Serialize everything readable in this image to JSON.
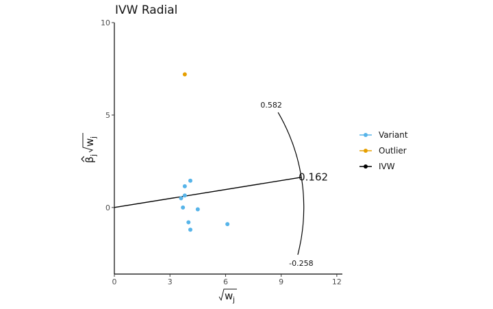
{
  "chart_data": {
    "type": "scatter",
    "title": "IVW Radial",
    "xlim": [
      0,
      12.3
    ],
    "ylim": [
      -3.6,
      10
    ],
    "x_ticks": [
      {
        "value": 0,
        "label": "0"
      },
      {
        "value": 3,
        "label": "3"
      },
      {
        "value": 6,
        "label": "6"
      },
      {
        "value": 9,
        "label": "9"
      },
      {
        "value": 12,
        "label": "12"
      }
    ],
    "y_ticks": [
      {
        "value": 0,
        "label": "0"
      },
      {
        "value": 5,
        "label": "5"
      },
      {
        "value": 10,
        "label": "10"
      }
    ],
    "grid": false,
    "legend_position": "right",
    "series": [
      {
        "name": "Variant",
        "color": "#56B4E9",
        "points": [
          {
            "x": 4.1,
            "y": 1.45
          },
          {
            "x": 3.8,
            "y": 1.15
          },
          {
            "x": 3.8,
            "y": 0.65
          },
          {
            "x": 3.6,
            "y": 0.5
          },
          {
            "x": 3.7,
            "y": 0.0
          },
          {
            "x": 4.5,
            "y": -0.1
          },
          {
            "x": 4.0,
            "y": -0.8
          },
          {
            "x": 4.1,
            "y": -1.2
          },
          {
            "x": 6.1,
            "y": -0.9
          }
        ]
      },
      {
        "name": "Outlier",
        "color": "#E69F00",
        "points": [
          {
            "x": 3.8,
            "y": 7.2
          }
        ]
      }
    ],
    "ivw": {
      "name": "IVW",
      "color": "#000000",
      "slope": 0.162,
      "x_end": 10.1
    },
    "arc": {
      "radius": 10.22,
      "upper": {
        "slope": 0.582,
        "label": "0.582"
      },
      "main": {
        "slope": 0.162,
        "label": "0.162"
      },
      "lower": {
        "slope": -0.258,
        "label": "-0.258"
      }
    }
  }
}
